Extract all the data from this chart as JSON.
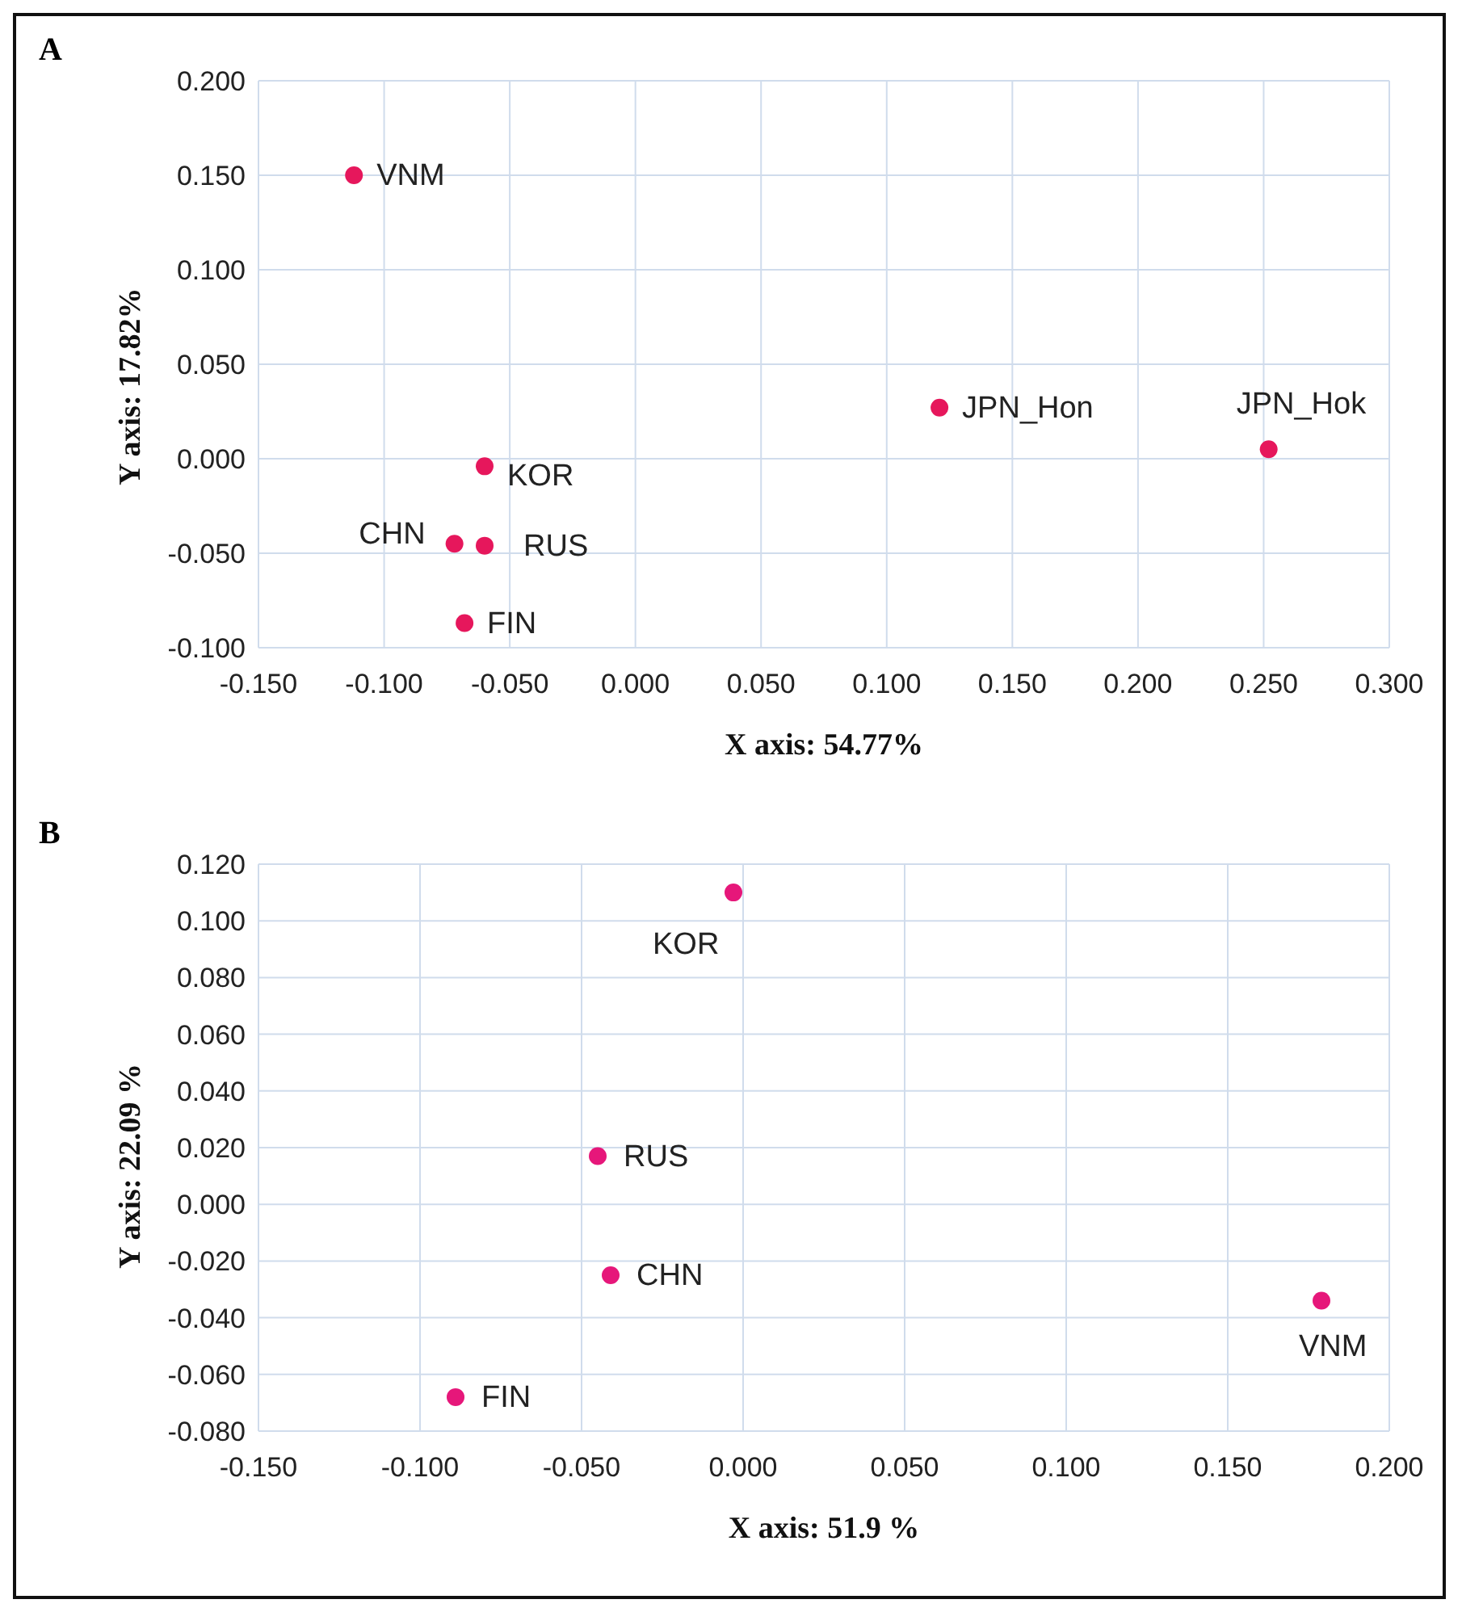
{
  "chart_data": [
    {
      "type": "scatter",
      "title": "A",
      "xlabel": "X axis: 54.77%",
      "ylabel": "Y axis: 17.82%",
      "grid": true,
      "marker": "circle",
      "xlim": [
        -0.15,
        0.3
      ],
      "xticks": [
        {
          "value": -0.15,
          "label": "-0.150"
        },
        {
          "value": -0.1,
          "label": "-0.100"
        },
        {
          "value": -0.05,
          "label": "-0.050"
        },
        {
          "value": 0,
          "label": "0.000"
        },
        {
          "value": 0.05,
          "label": "0.050"
        },
        {
          "value": 0.1,
          "label": "0.100"
        },
        {
          "value": 0.15,
          "label": "0.150"
        },
        {
          "value": 0.2,
          "label": "0.200"
        },
        {
          "value": 0.25,
          "label": "0.250"
        },
        {
          "value": 0.3,
          "label": "0.300"
        }
      ],
      "ylim": [
        -0.1,
        0.2
      ],
      "yticks": [
        {
          "value": -0.1,
          "label": "-0.100"
        },
        {
          "value": -0.05,
          "label": "-0.050"
        },
        {
          "value": 0,
          "label": "0.000"
        },
        {
          "value": 0.05,
          "label": "0.050"
        },
        {
          "value": 0.1,
          "label": "0.100"
        },
        {
          "value": 0.15,
          "label": "0.150"
        },
        {
          "value": 0.2,
          "label": "0.200"
        }
      ],
      "series": [
        {
          "name": "VNM",
          "color": "#e6175c",
          "x": [
            -0.112
          ],
          "values": [
            0.15
          ]
        },
        {
          "name": "KOR",
          "color": "#e6175c",
          "x": [
            -0.06
          ],
          "values": [
            -0.004
          ]
        },
        {
          "name": "CHN",
          "color": "#e6175c",
          "x": [
            -0.072
          ],
          "values": [
            -0.045
          ]
        },
        {
          "name": "RUS",
          "color": "#e6175c",
          "x": [
            -0.06
          ],
          "values": [
            -0.046
          ]
        },
        {
          "name": "FIN",
          "color": "#e6175c",
          "x": [
            -0.068
          ],
          "values": [
            -0.087
          ]
        },
        {
          "name": "JPN_Hon",
          "color": "#e6175c",
          "x": [
            0.121
          ],
          "values": [
            0.027
          ]
        },
        {
          "name": "JPN_Hok",
          "color": "#e6175c",
          "x": [
            0.252
          ],
          "values": [
            0.005
          ]
        }
      ]
    },
    {
      "type": "scatter",
      "title": "B",
      "xlabel": "X axis: 51.9 %",
      "ylabel": "Y axis: 22.09 %",
      "grid": true,
      "marker": "circle",
      "xlim": [
        -0.15,
        0.2
      ],
      "xticks": [
        {
          "value": -0.15,
          "label": "-0.150"
        },
        {
          "value": -0.1,
          "label": "-0.100"
        },
        {
          "value": -0.05,
          "label": "-0.050"
        },
        {
          "value": 0,
          "label": "0.000"
        },
        {
          "value": 0.05,
          "label": "0.050"
        },
        {
          "value": 0.1,
          "label": "0.100"
        },
        {
          "value": 0.15,
          "label": "0.150"
        },
        {
          "value": 0.2,
          "label": "0.200"
        }
      ],
      "ylim": [
        -0.08,
        0.12
      ],
      "yticks": [
        {
          "value": -0.08,
          "label": "-0.080"
        },
        {
          "value": -0.06,
          "label": "-0.060"
        },
        {
          "value": -0.04,
          "label": "-0.040"
        },
        {
          "value": -0.02,
          "label": "-0.020"
        },
        {
          "value": 0,
          "label": "0.000"
        },
        {
          "value": 0.02,
          "label": "0.020"
        },
        {
          "value": 0.04,
          "label": "0.040"
        },
        {
          "value": 0.06,
          "label": "0.060"
        },
        {
          "value": 0.08,
          "label": "0.080"
        },
        {
          "value": 0.1,
          "label": "0.100"
        },
        {
          "value": 0.12,
          "label": "0.120"
        }
      ],
      "series": [
        {
          "name": "KOR",
          "color": "#e6177a",
          "x": [
            -0.003
          ],
          "values": [
            0.11
          ]
        },
        {
          "name": "RUS",
          "color": "#e6177a",
          "x": [
            -0.045
          ],
          "values": [
            0.017
          ]
        },
        {
          "name": "CHN",
          "color": "#e6177a",
          "x": [
            -0.041
          ],
          "values": [
            -0.025
          ]
        },
        {
          "name": "VNM",
          "color": "#e6177a",
          "x": [
            0.179
          ],
          "values": [
            -0.034
          ]
        },
        {
          "name": "FIN",
          "color": "#e6177a",
          "x": [
            -0.089
          ],
          "values": [
            -0.068
          ]
        }
      ]
    }
  ]
}
